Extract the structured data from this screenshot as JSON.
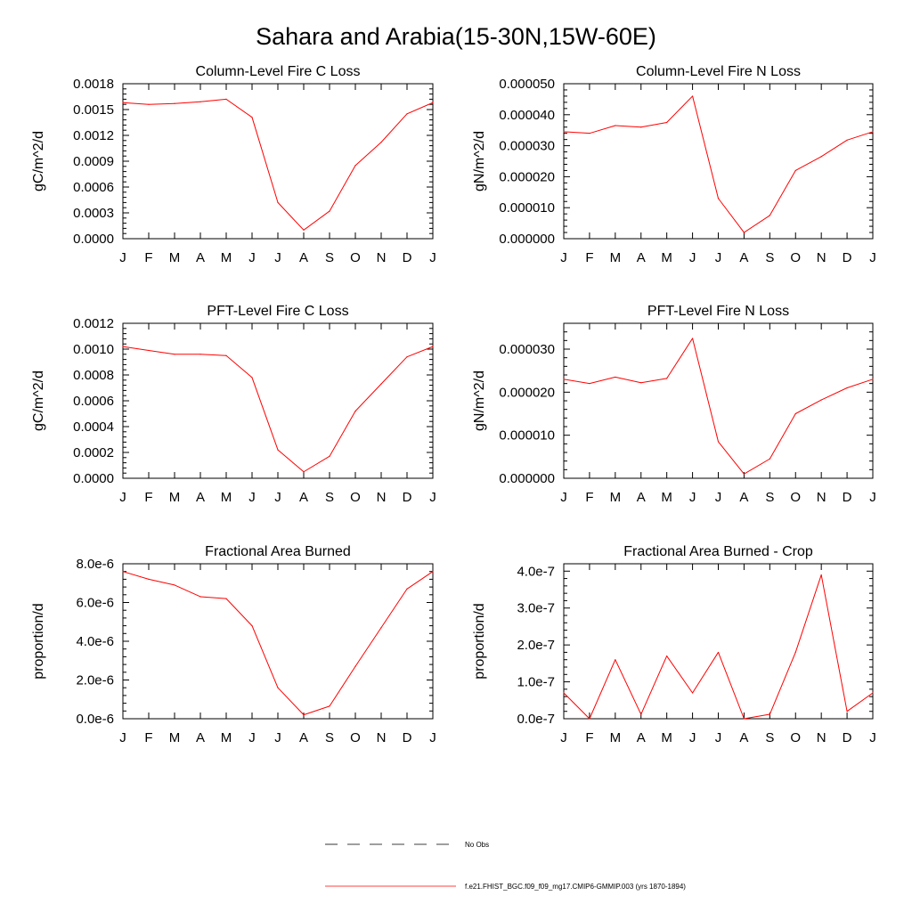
{
  "title": "Sahara and Arabia(15-30N,15W-60E)",
  "series_color": "#ff0000",
  "legend": {
    "obs_label": "No Obs",
    "model_label": "f.e21.FHIST_BGC.f09_f09_mg17.CMIP6-GMMIP.003 (yrs 1870-1894)"
  },
  "chart_data": [
    {
      "type": "line",
      "title": "Column-Level Fire C Loss",
      "ylabel": "gC/m^2/d",
      "ylim": [
        0,
        0.0018
      ],
      "yticks": [
        0,
        0.0003,
        0.0006,
        0.0009,
        0.0012,
        0.0015,
        0.0018
      ],
      "ytick_labels": [
        "0.0000",
        "0.0003",
        "0.0006",
        "0.0009",
        "0.0012",
        "0.0015",
        "0.0018"
      ],
      "categories": [
        "J",
        "F",
        "M",
        "A",
        "M",
        "J",
        "J",
        "A",
        "S",
        "O",
        "N",
        "D",
        "J"
      ],
      "values": [
        0.00158,
        0.00156,
        0.00157,
        0.00159,
        0.00162,
        0.00141,
        0.00042,
        0.0001,
        0.00032,
        0.00085,
        0.00112,
        0.00145,
        0.00158
      ]
    },
    {
      "type": "line",
      "title": "Column-Level Fire N Loss",
      "ylabel": "gN/m^2/d",
      "ylim": [
        0,
        5e-05
      ],
      "yticks": [
        0,
        1e-05,
        2e-05,
        3e-05,
        4e-05,
        5e-05
      ],
      "ytick_labels": [
        "0.000000",
        "0.000010",
        "0.000020",
        "0.000030",
        "0.000040",
        "0.000050"
      ],
      "categories": [
        "J",
        "F",
        "M",
        "A",
        "M",
        "J",
        "J",
        "A",
        "S",
        "O",
        "N",
        "D",
        "J"
      ],
      "values": [
        3.45e-05,
        3.4e-05,
        3.65e-05,
        3.6e-05,
        3.75e-05,
        4.6e-05,
        1.3e-05,
        2e-06,
        7.5e-06,
        2.2e-05,
        2.65e-05,
        3.18e-05,
        3.45e-05
      ]
    },
    {
      "type": "line",
      "title": "PFT-Level Fire C Loss",
      "ylabel": "gC/m^2/d",
      "ylim": [
        0,
        0.0012
      ],
      "yticks": [
        0,
        0.0002,
        0.0004,
        0.0006,
        0.0008,
        0.001,
        0.0012
      ],
      "ytick_labels": [
        "0.0000",
        "0.0002",
        "0.0004",
        "0.0006",
        "0.0008",
        "0.0010",
        "0.0012"
      ],
      "categories": [
        "J",
        "F",
        "M",
        "A",
        "M",
        "J",
        "J",
        "A",
        "S",
        "O",
        "N",
        "D",
        "J"
      ],
      "values": [
        0.00102,
        0.00099,
        0.00096,
        0.00096,
        0.00095,
        0.00078,
        0.00022,
        5e-05,
        0.00017,
        0.00052,
        0.00073,
        0.00094,
        0.00102
      ]
    },
    {
      "type": "line",
      "title": "PFT-Level Fire N Loss",
      "ylabel": "gN/m^2/d",
      "ylim": [
        0,
        3.6e-05
      ],
      "yticks": [
        0,
        1e-05,
        2e-05,
        3e-05
      ],
      "ytick_labels": [
        "0.000000",
        "0.000010",
        "0.000020",
        "0.000030"
      ],
      "categories": [
        "J",
        "F",
        "M",
        "A",
        "M",
        "J",
        "J",
        "A",
        "S",
        "O",
        "N",
        "D",
        "J"
      ],
      "values": [
        2.3e-05,
        2.2e-05,
        2.35e-05,
        2.22e-05,
        2.32e-05,
        3.25e-05,
        8.5e-06,
        1e-06,
        4.5e-06,
        1.5e-05,
        1.82e-05,
        2.1e-05,
        2.3e-05
      ]
    },
    {
      "type": "line",
      "title": "Fractional Area Burned",
      "ylabel": "proportion/d",
      "ylim": [
        0,
        8e-06
      ],
      "yticks": [
        0,
        2e-06,
        4e-06,
        6e-06,
        8e-06
      ],
      "ytick_labels": [
        "0.0e-6",
        "2.0e-6",
        "4.0e-6",
        "6.0e-6",
        "8.0e-6"
      ],
      "categories": [
        "J",
        "F",
        "M",
        "A",
        "M",
        "J",
        "J",
        "A",
        "S",
        "O",
        "N",
        "D",
        "J"
      ],
      "values": [
        7.6e-06,
        7.2e-06,
        6.9e-06,
        6.3e-06,
        6.2e-06,
        4.8e-06,
        1.6e-06,
        2e-07,
        6.5e-07,
        2.7e-06,
        4.7e-06,
        6.7e-06,
        7.6e-06
      ]
    },
    {
      "type": "line",
      "title": "Fractional Area Burned - Crop",
      "ylabel": "proportion/d",
      "ylim": [
        0,
        4.2e-07
      ],
      "yticks": [
        0,
        1e-07,
        2e-07,
        3e-07,
        4e-07
      ],
      "ytick_labels": [
        "0.0e-7",
        "1.0e-7",
        "2.0e-7",
        "3.0e-7",
        "4.0e-7"
      ],
      "categories": [
        "J",
        "F",
        "M",
        "A",
        "M",
        "J",
        "J",
        "A",
        "S",
        "O",
        "N",
        "D",
        "J"
      ],
      "values": [
        7e-08,
        0,
        1.6e-07,
        1.2e-08,
        1.7e-07,
        7e-08,
        1.8e-07,
        0,
        1.2e-08,
        1.8e-07,
        3.9e-07,
        2e-08,
        7e-08
      ]
    }
  ]
}
